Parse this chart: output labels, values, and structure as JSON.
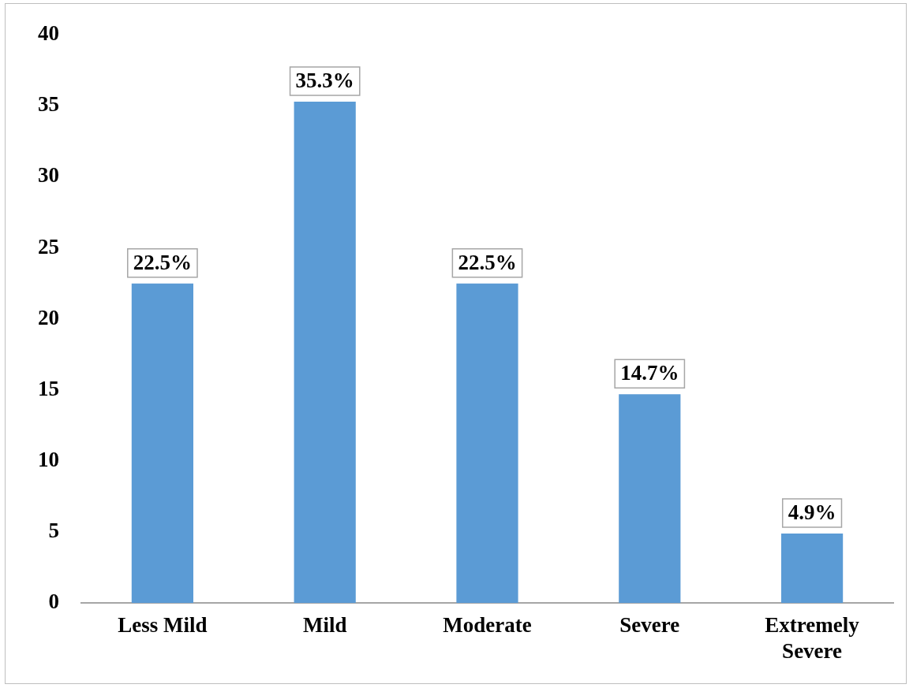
{
  "chart_data": {
    "type": "bar",
    "categories": [
      "Less Mild",
      "Mild",
      "Moderate",
      "Severe",
      "Extremely Severe"
    ],
    "values": [
      22.5,
      35.3,
      22.5,
      14.7,
      4.9
    ],
    "value_labels": [
      "22.5%",
      "35.3%",
      "22.5%",
      "14.7%",
      "4.9%"
    ],
    "color": "#5b9bd5",
    "ylim": [
      0,
      40
    ],
    "yticks": [
      0,
      5,
      10,
      15,
      20,
      25,
      30,
      35,
      40
    ],
    "grid": false
  }
}
